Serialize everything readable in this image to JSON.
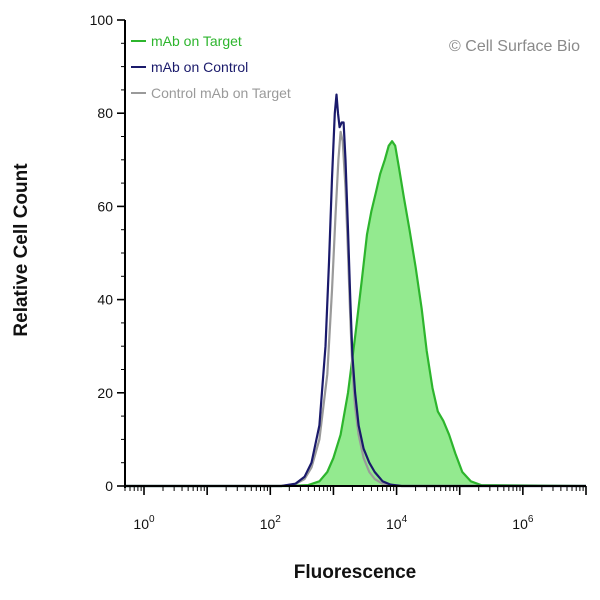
{
  "chart_data": {
    "type": "area",
    "title": "",
    "xlabel": "Fluorescence",
    "ylabel": "Relative Cell Count",
    "x_scale": "log",
    "xlim": [
      0.5,
      10000000
    ],
    "ylim": [
      0,
      100
    ],
    "y_ticks": [
      0,
      20,
      40,
      60,
      80,
      100
    ],
    "y_tick_labels": [
      "0",
      "20",
      "40",
      "60",
      "80",
      "100"
    ],
    "x_ticks": [
      1,
      100,
      10000,
      1000000
    ],
    "x_tick_labels": [
      {
        "base": "10",
        "exp": "0"
      },
      {
        "base": "10",
        "exp": "2"
      },
      {
        "base": "10",
        "exp": "4"
      },
      {
        "base": "10",
        "exp": "6"
      }
    ],
    "grid": false,
    "legend_position": "top-left",
    "watermark": "© Cell Surface Bio",
    "series": [
      {
        "name": "mAb on Target",
        "color": "#2db52d",
        "fill": "#93ea8f",
        "filled": true,
        "points": [
          [
            0.5,
            0
          ],
          [
            200,
            0
          ],
          [
            400,
            0.2
          ],
          [
            600,
            1
          ],
          [
            800,
            3
          ],
          [
            1000,
            6
          ],
          [
            1300,
            11
          ],
          [
            1700,
            20
          ],
          [
            2200,
            32
          ],
          [
            2800,
            44
          ],
          [
            3400,
            54
          ],
          [
            4000,
            59
          ],
          [
            4700,
            63
          ],
          [
            5500,
            67
          ],
          [
            6500,
            70
          ],
          [
            7500,
            73
          ],
          [
            8500,
            74
          ],
          [
            9500,
            73
          ],
          [
            11000,
            68
          ],
          [
            13000,
            62
          ],
          [
            16000,
            55
          ],
          [
            20000,
            47
          ],
          [
            25000,
            38
          ],
          [
            30000,
            29
          ],
          [
            37000,
            21
          ],
          [
            45000,
            16
          ],
          [
            55000,
            14
          ],
          [
            68000,
            11
          ],
          [
            85000,
            7
          ],
          [
            110000,
            3
          ],
          [
            150000,
            1
          ],
          [
            220000,
            0.2
          ],
          [
            10000000,
            0
          ]
        ]
      },
      {
        "name": "mAb on Control",
        "color": "#1a1a6b",
        "filled": false,
        "points": [
          [
            0.5,
            0
          ],
          [
            150,
            0
          ],
          [
            250,
            0.5
          ],
          [
            350,
            2
          ],
          [
            450,
            5
          ],
          [
            600,
            13
          ],
          [
            750,
            30
          ],
          [
            850,
            48
          ],
          [
            950,
            66
          ],
          [
            1050,
            80
          ],
          [
            1120,
            84
          ],
          [
            1180,
            80
          ],
          [
            1250,
            77
          ],
          [
            1350,
            78
          ],
          [
            1450,
            78
          ],
          [
            1550,
            70
          ],
          [
            1700,
            55
          ],
          [
            1850,
            40
          ],
          [
            2000,
            28
          ],
          [
            2200,
            20
          ],
          [
            2500,
            13
          ],
          [
            3000,
            8
          ],
          [
            3700,
            5
          ],
          [
            4500,
            3
          ],
          [
            6000,
            1
          ],
          [
            8000,
            0.3
          ],
          [
            12000,
            0
          ],
          [
            10000000,
            0
          ]
        ]
      },
      {
        "name": "Control mAb on Target",
        "color": "#9a9a9a",
        "filled": false,
        "points": [
          [
            0.5,
            0
          ],
          [
            150,
            0
          ],
          [
            250,
            0.4
          ],
          [
            350,
            1.5
          ],
          [
            450,
            4
          ],
          [
            600,
            10
          ],
          [
            800,
            24
          ],
          [
            950,
            42
          ],
          [
            1080,
            58
          ],
          [
            1200,
            70
          ],
          [
            1300,
            76
          ],
          [
            1400,
            74
          ],
          [
            1550,
            64
          ],
          [
            1700,
            50
          ],
          [
            1850,
            36
          ],
          [
            2000,
            25
          ],
          [
            2200,
            17
          ],
          [
            2500,
            11
          ],
          [
            3000,
            6
          ],
          [
            3700,
            3
          ],
          [
            4500,
            1.5
          ],
          [
            6000,
            0.5
          ],
          [
            9000,
            0
          ],
          [
            10000000,
            0
          ]
        ]
      }
    ]
  }
}
